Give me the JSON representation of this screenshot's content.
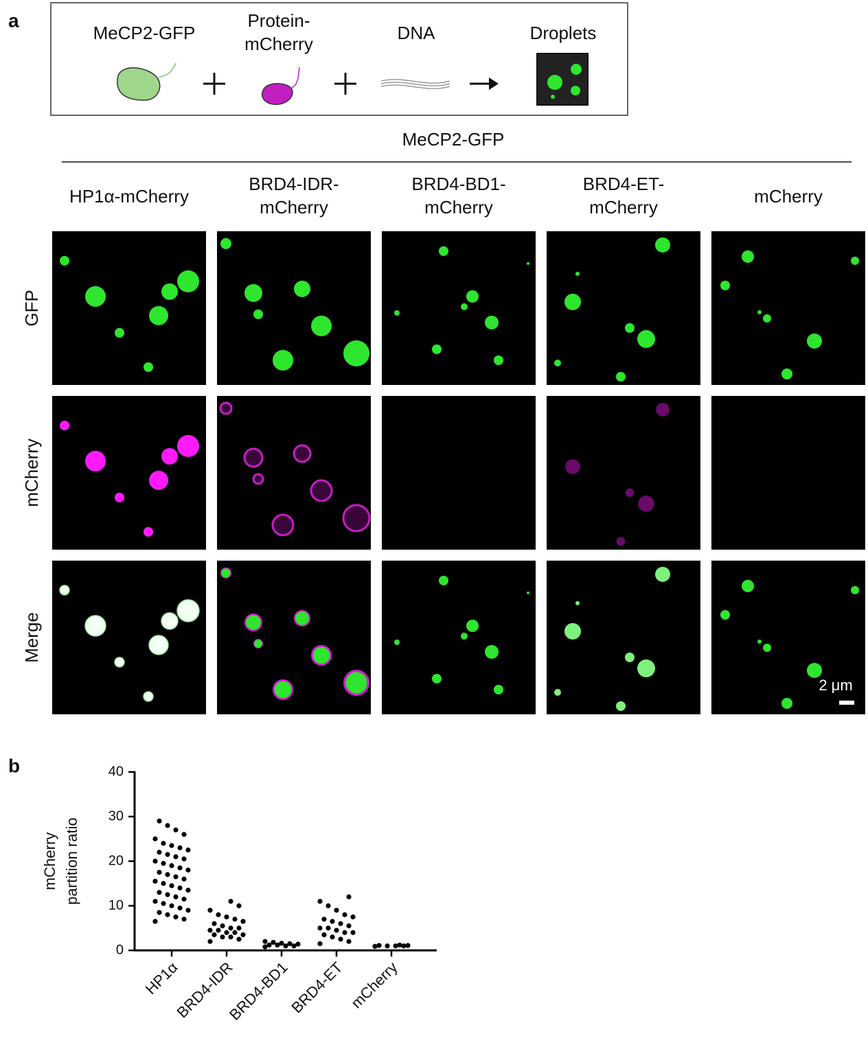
{
  "panel_a": {
    "label": "a",
    "schematic": {
      "items": [
        [
          "MeCP2-GFP"
        ],
        [
          "Protein-",
          "mCherry"
        ],
        [
          "DNA"
        ],
        [
          "Droplets"
        ]
      ]
    },
    "header": "MeCP2-GFP",
    "columns": [
      [
        "HP1α-mCherry"
      ],
      [
        "BRD4-IDR-",
        "mCherry"
      ],
      [
        "BRD4-BD1-",
        "mCherry"
      ],
      [
        "BRD4-ET-",
        "mCherry"
      ],
      [
        "mCherry"
      ]
    ],
    "rows": [
      "GFP",
      "mCherry",
      "Merge"
    ],
    "scale_bar": "2 μm"
  },
  "panel_b_label": "b",
  "chart_data": {
    "type": "strip",
    "ylabel": [
      "mCherry",
      "partition ratio"
    ],
    "categories": [
      "HP1α",
      "BRD4-IDR",
      "BRD4-BD1",
      "BRD4-ET",
      "mCherry"
    ],
    "values": [
      [
        6.5,
        7,
        7.5,
        8,
        8.5,
        9,
        9.5,
        10,
        10.5,
        11,
        11.5,
        12,
        12.5,
        13,
        13.5,
        14,
        14.5,
        15,
        15.5,
        16,
        16.5,
        17,
        17.5,
        18,
        18.5,
        19,
        19.5,
        20,
        20.5,
        21,
        21.5,
        22,
        22.5,
        23,
        23.5,
        24,
        25,
        26,
        27,
        28,
        29
      ],
      [
        2,
        2.5,
        3,
        3,
        3.5,
        3.5,
        4,
        4,
        4.5,
        4.5,
        5,
        5,
        5.5,
        6,
        6.5,
        7,
        7.5,
        8,
        9,
        10,
        11
      ],
      [
        0.8,
        1,
        1,
        1.2,
        1.2,
        1.4,
        1.5,
        1.6,
        1.8,
        2
      ],
      [
        1.5,
        2,
        2.5,
        3,
        3.5,
        4,
        4,
        4.5,
        5,
        5,
        5.5,
        6,
        6.5,
        7,
        7.5,
        8,
        9,
        10,
        11,
        12
      ],
      [
        0.9,
        1,
        1,
        1,
        1.1,
        1.1,
        1.2
      ]
    ],
    "color": "#000000",
    "ylim": [
      0,
      40
    ],
    "yticks": [
      0,
      10,
      20,
      30,
      40
    ]
  }
}
